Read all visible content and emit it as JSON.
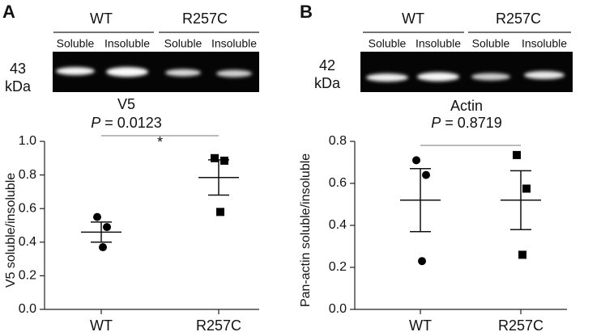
{
  "chart_data": [
    {
      "type": "scatter",
      "panel_label": "A",
      "blot": {
        "groups": [
          "WT",
          "R257C"
        ],
        "lanes": [
          "Soluble",
          "Insoluble",
          "Soluble",
          "Insoluble"
        ],
        "marker": "43",
        "unit": "kDa"
      },
      "title": "V5",
      "stat_symbol": "P",
      "stat_text": "= 0.0123",
      "significance": "*",
      "ylabel": "V5 soluble/insoluble",
      "categories": [
        "WT",
        "R257C"
      ],
      "markers": [
        "circle",
        "square"
      ],
      "points": [
        [
          0.55,
          0.49,
          0.37
        ],
        [
          0.9,
          0.885,
          0.58
        ]
      ],
      "means": [
        0.46,
        0.785
      ],
      "errors": [
        0.06,
        0.105
      ],
      "ylim": [
        0,
        1
      ],
      "yticks": [
        {
          "value": 0,
          "label": "0.0"
        },
        0.2,
        0.4,
        0.6,
        0.8,
        {
          "value": 1,
          "label": "1.0"
        }
      ]
    },
    {
      "type": "scatter",
      "panel_label": "B",
      "blot": {
        "groups": [
          "WT",
          "R257C"
        ],
        "lanes": [
          "Soluble",
          "Insoluble",
          "Soluble",
          "Insoluble"
        ],
        "marker": "42",
        "unit": "kDa"
      },
      "title": "Actin",
      "stat_symbol": "P",
      "stat_text": "= 0.8719",
      "ylabel": "Pan-actin soluble/insoluble",
      "categories": [
        "WT",
        "R257C"
      ],
      "markers": [
        "circle",
        "square"
      ],
      "points": [
        [
          0.71,
          0.64,
          0.23
        ],
        [
          0.735,
          0.575,
          0.26
        ]
      ],
      "means": [
        0.52,
        0.52
      ],
      "errors": [
        0.15,
        0.14
      ],
      "ylim": [
        0,
        0.8
      ],
      "yticks": [
        {
          "value": 0,
          "label": "0.0"
        },
        0.2,
        0.4,
        0.6,
        0.8
      ]
    }
  ]
}
